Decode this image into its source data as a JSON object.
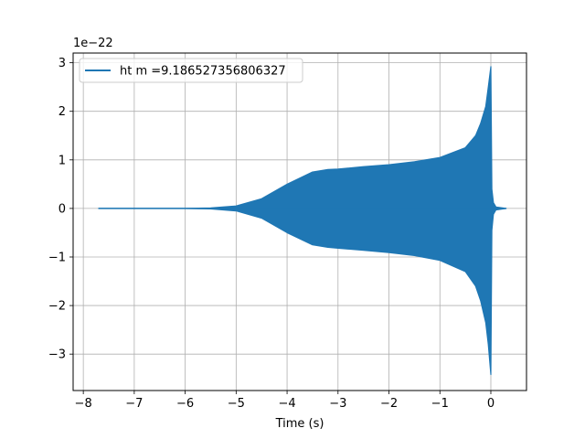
{
  "chart_data": {
    "type": "line",
    "title": "",
    "xlabel": "Time (s)",
    "ylabel": "",
    "y_scale_label": "1e−22",
    "y_scale_exponent": -22,
    "xlim": [
      -8.2,
      0.7
    ],
    "ylim": [
      -3.75,
      3.2
    ],
    "xticks": [
      -8,
      -7,
      -6,
      -5,
      -4,
      -3,
      -2,
      -1,
      0
    ],
    "xtick_labels": [
      "−8",
      "−7",
      "−6",
      "−5",
      "−4",
      "−3",
      "−2",
      "−1",
      "0"
    ],
    "yticks": [
      -3,
      -2,
      -1,
      0,
      1,
      2,
      3
    ],
    "ytick_labels": [
      "−3",
      "−2",
      "−1",
      "0",
      "1",
      "2",
      "3"
    ],
    "grid": true,
    "legend_position": "upper-left",
    "series": [
      {
        "name": "ht m =9.186527356806327",
        "color": "#1f77b4",
        "x_range": [
          -7.7,
          0.3
        ],
        "upper_envelope": {
          "t": [
            -7.7,
            -6.0,
            -5.5,
            -5.0,
            -4.5,
            -4.0,
            -3.5,
            -3.2,
            -3.0,
            -2.5,
            -2.0,
            -1.5,
            -1.0,
            -0.5,
            -0.3,
            -0.2,
            -0.1,
            -0.05,
            0.0,
            0.02,
            0.05,
            0.1,
            0.3
          ],
          "v": [
            0.0,
            0.0,
            0.01,
            0.05,
            0.2,
            0.5,
            0.75,
            0.8,
            0.81,
            0.86,
            0.9,
            0.96,
            1.05,
            1.25,
            1.5,
            1.75,
            2.1,
            2.5,
            2.92,
            0.4,
            0.12,
            0.03,
            0.0
          ]
        },
        "lower_envelope": {
          "t": [
            -7.7,
            -6.0,
            -5.5,
            -5.0,
            -4.5,
            -4.0,
            -3.5,
            -3.2,
            -3.0,
            -2.5,
            -2.0,
            -1.5,
            -1.0,
            -0.5,
            -0.3,
            -0.2,
            -0.1,
            -0.05,
            0.0,
            0.02,
            0.05,
            0.1,
            0.3
          ],
          "v": [
            0.0,
            0.0,
            -0.01,
            -0.05,
            -0.2,
            -0.5,
            -0.75,
            -0.8,
            -0.82,
            -0.86,
            -0.91,
            -0.97,
            -1.07,
            -1.3,
            -1.6,
            -1.9,
            -2.35,
            -2.8,
            -3.42,
            -0.45,
            -0.12,
            -0.03,
            0.0
          ]
        }
      }
    ]
  }
}
